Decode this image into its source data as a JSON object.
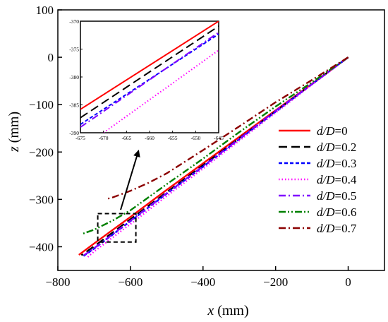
{
  "chart_data": {
    "type": "line",
    "xlabel": "x (mm)",
    "ylabel": "z (mm)",
    "xlim": [
      -800,
      100
    ],
    "ylim": [
      -450,
      100
    ],
    "x_ticks": [
      -800,
      -600,
      -400,
      -200,
      0
    ],
    "x_tick_labels": [
      "−800",
      "−600",
      "−400",
      "−200",
      "0"
    ],
    "y_ticks": [
      100,
      0,
      -100,
      -200,
      -300,
      -400
    ],
    "y_tick_labels": [
      "100",
      "0",
      "−100",
      "−200",
      "−300",
      "−400"
    ],
    "legend_position": "right",
    "series": [
      {
        "name": "d/D=0",
        "label_italic": "d/D",
        "label_value": "=0",
        "color": "#ff0000",
        "dash": "solid",
        "points": [
          [
            0,
            0
          ],
          [
            -100,
            -56
          ],
          [
            -200,
            -112
          ],
          [
            -300,
            -168
          ],
          [
            -400,
            -224
          ],
          [
            -500,
            -280
          ],
          [
            -600,
            -337
          ],
          [
            -700,
            -393
          ],
          [
            -742,
            -417
          ]
        ]
      },
      {
        "name": "d/D=0.2",
        "label_italic": "d/D",
        "label_value": "=0.2",
        "color": "#000000",
        "dash": "dash",
        "points": [
          [
            0,
            0
          ],
          [
            -100,
            -57
          ],
          [
            -200,
            -114
          ],
          [
            -300,
            -171
          ],
          [
            -400,
            -228
          ],
          [
            -500,
            -285
          ],
          [
            -600,
            -342
          ],
          [
            -700,
            -399
          ],
          [
            -735,
            -418
          ]
        ]
      },
      {
        "name": "d/D=0.3",
        "label_italic": "d/D",
        "label_value": "=0.3",
        "color": "#0000ff",
        "dash": "short-dash",
        "points": [
          [
            0,
            0
          ],
          [
            -100,
            -57
          ],
          [
            -200,
            -115
          ],
          [
            -300,
            -173
          ],
          [
            -400,
            -231
          ],
          [
            -500,
            -288
          ],
          [
            -600,
            -346
          ],
          [
            -700,
            -404
          ],
          [
            -730,
            -420
          ]
        ]
      },
      {
        "name": "d/D=0.4",
        "label_italic": "d/D",
        "label_value": "=0.4",
        "color": "#ff00ff",
        "dash": "dot",
        "points": [
          [
            0,
            0
          ],
          [
            -100,
            -58
          ],
          [
            -200,
            -117
          ],
          [
            -300,
            -176
          ],
          [
            -400,
            -235
          ],
          [
            -500,
            -293
          ],
          [
            -600,
            -352
          ],
          [
            -700,
            -410
          ],
          [
            -720,
            -423
          ]
        ]
      },
      {
        "name": "d/D=0.5",
        "label_italic": "d/D",
        "label_value": "=0.5",
        "color": "#8000ff",
        "dash": "dash-dot",
        "points": [
          [
            0,
            0
          ],
          [
            -100,
            -57
          ],
          [
            -200,
            -113
          ],
          [
            -300,
            -172
          ],
          [
            -400,
            -230
          ],
          [
            -500,
            -287
          ],
          [
            -600,
            -345
          ],
          [
            -700,
            -403
          ],
          [
            -728,
            -418
          ]
        ]
      },
      {
        "name": "d/D=0.6",
        "label_italic": "d/D",
        "label_value": "=0.6",
        "color": "#008000",
        "dash": "dash-dot-dot",
        "points": [
          [
            0,
            0
          ],
          [
            -100,
            -53
          ],
          [
            -200,
            -104
          ],
          [
            -300,
            -158
          ],
          [
            -400,
            -214
          ],
          [
            -500,
            -268
          ],
          [
            -600,
            -323
          ],
          [
            -650,
            -345
          ],
          [
            -700,
            -364
          ],
          [
            -730,
            -372
          ]
        ]
      },
      {
        "name": "d/D=0.7",
        "label_italic": "d/D",
        "label_value": "=0.7",
        "color": "#8b0000",
        "dash": "dash-dot",
        "points": [
          [
            0,
            0
          ],
          [
            -100,
            -48
          ],
          [
            -200,
            -95
          ],
          [
            -300,
            -146
          ],
          [
            -400,
            -196
          ],
          [
            -500,
            -245
          ],
          [
            -550,
            -265
          ],
          [
            -600,
            -282
          ],
          [
            -650,
            -296
          ],
          [
            -665,
            -299
          ]
        ]
      }
    ],
    "zoom_box": {
      "x": [
        -690,
        -585
      ],
      "y": [
        -330,
        -390
      ]
    },
    "inset": {
      "xlim": [
        -675,
        -645
      ],
      "ylim": [
        -390,
        -370
      ],
      "x_ticks": [
        -675,
        -670,
        -665,
        -660,
        -655,
        -650,
        -645
      ],
      "x_tick_labels": [
        "-675",
        "-670",
        "-665",
        "-660",
        "-655",
        "-650",
        "-645"
      ],
      "y_ticks": [
        -370,
        -375,
        -380,
        -385,
        -390
      ],
      "y_tick_labels": [
        "-370",
        "-375",
        "-380",
        "-385",
        "-390"
      ],
      "series": [
        {
          "name": "d/D=0",
          "color": "#ff0000",
          "dash": "solid",
          "points": [
            [
              -675,
              -385.8
            ],
            [
              -645,
              -370.0
            ]
          ]
        },
        {
          "name": "d/D=0.2",
          "color": "#000000",
          "dash": "dash",
          "points": [
            [
              -675,
              -387.3
            ],
            [
              -645,
              -370.9
            ]
          ]
        },
        {
          "name": "d/D=0.3",
          "color": "#0000ff",
          "dash": "short-dash",
          "points": [
            [
              -675,
              -388.5
            ],
            [
              -645,
              -372.3
            ]
          ]
        },
        {
          "name": "d/D=0.5",
          "color": "#8000ff",
          "dash": "dash-dot",
          "points": [
            [
              -675,
              -389.0
            ],
            [
              -645,
              -372.0
            ]
          ]
        },
        {
          "name": "d/D=0.4",
          "color": "#ff00ff",
          "dash": "dot",
          "points": [
            [
              -670,
              -390.0
            ],
            [
              -645,
              -375.2
            ]
          ]
        }
      ]
    }
  }
}
